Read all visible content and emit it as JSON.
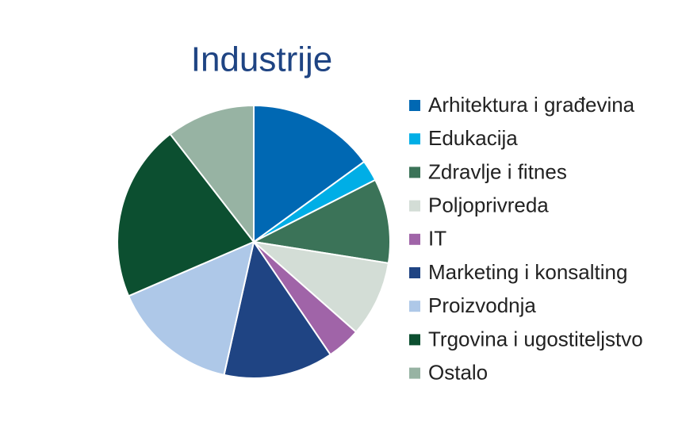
{
  "chart_data": {
    "type": "pie",
    "title": "Industrije",
    "categories": [
      "Arhitektura i građevina",
      "Edukacija",
      "Zdravlje i fitnes",
      "Poljoprivreda",
      "IT",
      "Marketing i konsalting",
      "Proizvodnja",
      "Trgovina i ugostiteljstvo",
      "Ostalo"
    ],
    "values": [
      15,
      2.5,
      10,
      9,
      4,
      13,
      15,
      21,
      10.5
    ],
    "colors": [
      "#0068b3",
      "#00aee6",
      "#3b7358",
      "#d3ddd6",
      "#a064a8",
      "#1f4483",
      "#aec8e8",
      "#0c4f30",
      "#97b3a3"
    ],
    "legend": "right"
  }
}
